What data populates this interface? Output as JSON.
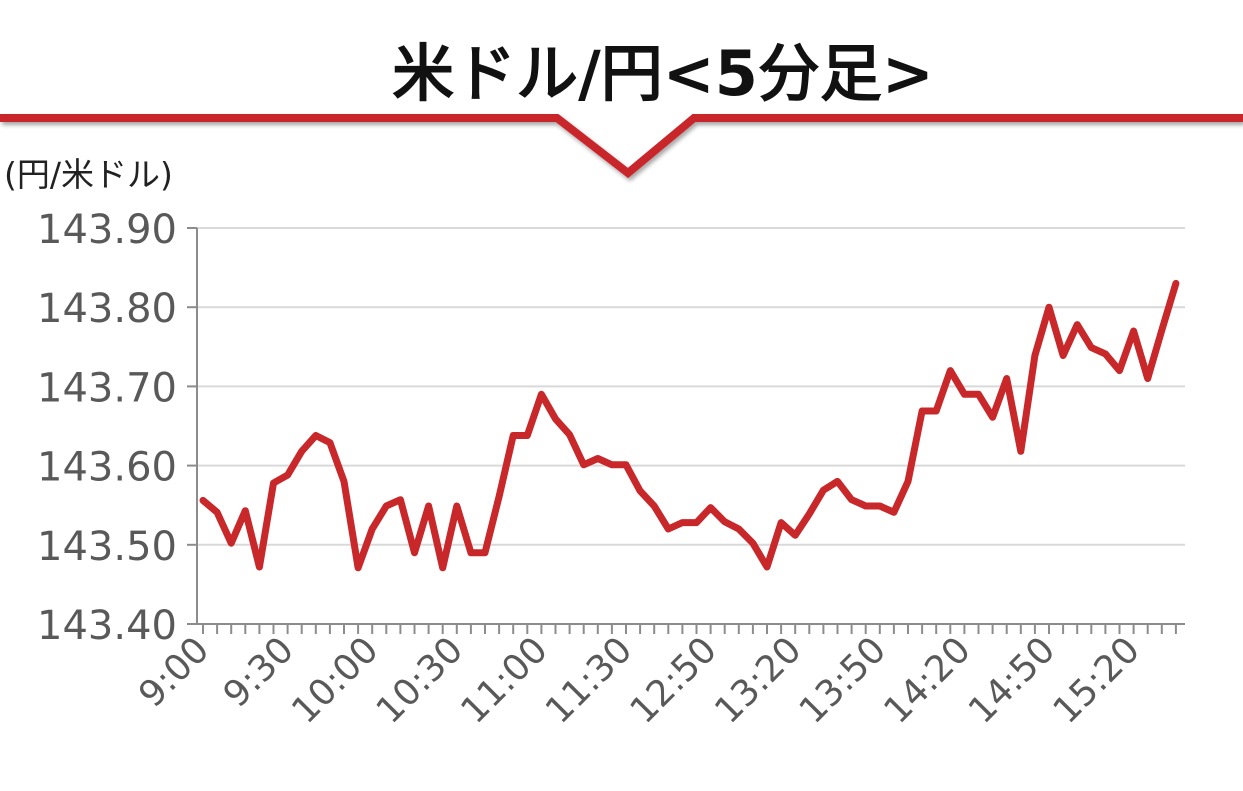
{
  "chart_data": {
    "type": "line",
    "title": "米ドル/円<5分足>",
    "ylabel": "(円/米ドル)",
    "xlabel": "",
    "ylim": [
      143.4,
      143.9
    ],
    "y_ticks": [
      "143.40",
      "143.50",
      "143.60",
      "143.70",
      "143.80",
      "143.90"
    ],
    "x_tick_labels": [
      "9:00",
      "9:30",
      "10:00",
      "10:30",
      "11:00",
      "11:30",
      "12:50",
      "13:20",
      "13:50",
      "14:20",
      "14:50",
      "15:20"
    ],
    "grid": true,
    "legend": "none",
    "series": [
      {
        "color": "#c8282a",
        "values": [
          143.556,
          143.541,
          143.502,
          143.543,
          143.472,
          143.578,
          143.588,
          143.618,
          143.638,
          143.629,
          143.58,
          143.471,
          143.52,
          143.549,
          143.557,
          143.49,
          143.549,
          143.471,
          143.549,
          143.49,
          143.49,
          143.561,
          143.638,
          143.638,
          143.69,
          143.659,
          143.639,
          143.601,
          143.609,
          143.601,
          143.601,
          143.568,
          143.549,
          143.52,
          143.528,
          143.528,
          143.547,
          143.529,
          143.52,
          143.502,
          143.472,
          143.528,
          143.512,
          143.539,
          143.569,
          143.58,
          143.557,
          143.549,
          143.549,
          143.541,
          143.58,
          143.669,
          143.669,
          143.72,
          143.69,
          143.69,
          143.661,
          143.71,
          143.618,
          143.739,
          143.8,
          143.739,
          143.778,
          143.749,
          143.741,
          143.72,
          143.77,
          143.71,
          143.771,
          143.83
        ]
      }
    ]
  }
}
